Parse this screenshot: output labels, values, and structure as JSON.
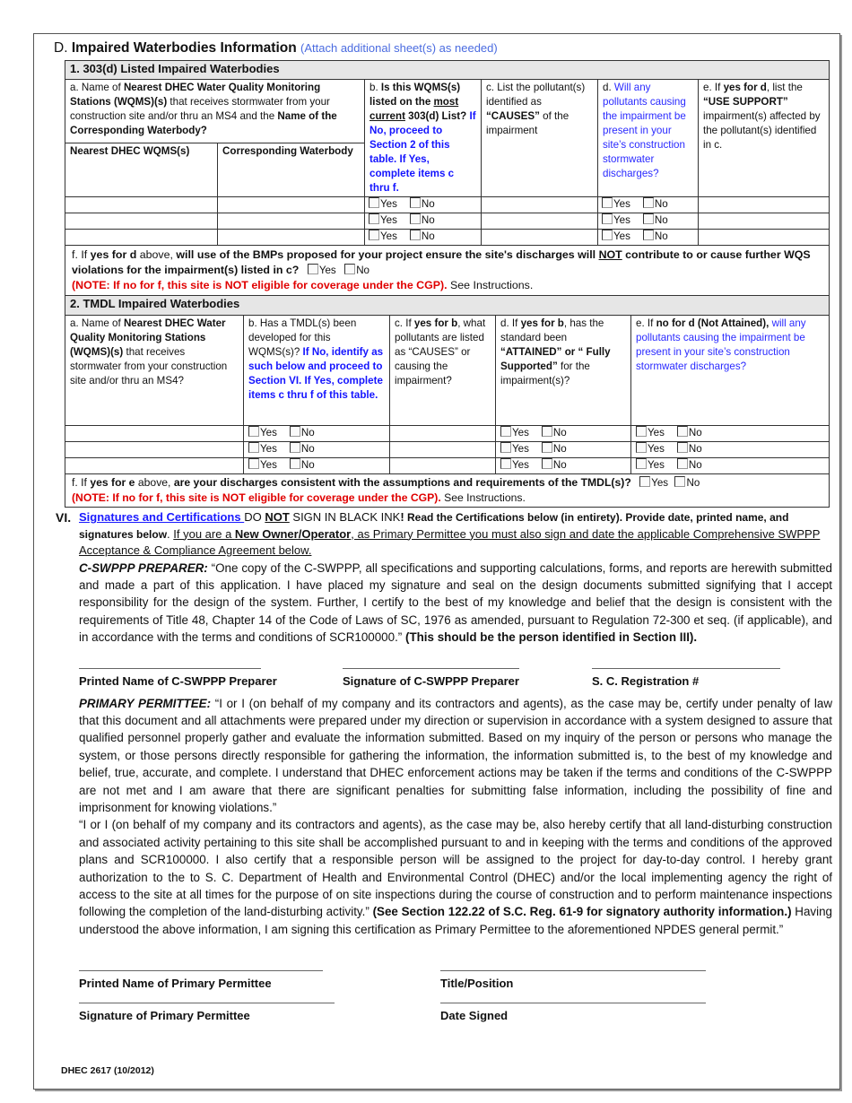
{
  "section_d": {
    "letter": "D.",
    "title": "Impaired Waterbodies Information",
    "note": "(Attach additional sheet(s) as needed)"
  },
  "table1": {
    "heading": "1. 303(d) Listed Impaired Waterbodies",
    "col_a": [
      [
        "a.  Name of ",
        ""
      ],
      [
        "Nearest DHEC Water Quality Monitoring Stations (WQMS)(s)",
        "b"
      ],
      [
        " that receives stormwater from your construction site and/or thru an MS4 and the ",
        ""
      ],
      [
        "Name of the Corresponding Waterbody?",
        "b"
      ]
    ],
    "sub_a1": "Nearest DHEC WQMS(s)",
    "sub_a2": "Corresponding Waterbody",
    "col_b": [
      [
        "b. ",
        ""
      ],
      [
        "Is this WQMS(s) listed on the ",
        "b"
      ],
      [
        "most",
        "bu"
      ],
      [
        " ",
        "b"
      ],
      [
        "current",
        "bu"
      ],
      [
        " 303(d) List? ",
        "b"
      ],
      [
        "If No, proceed to Section 2 of this table. If Yes, complete items c thru f.",
        "blb"
      ]
    ],
    "col_c": [
      [
        "c. List the pollutant(s) identified as ",
        ""
      ],
      [
        "“CAUSES”",
        "b"
      ],
      [
        " of the impairment",
        ""
      ]
    ],
    "col_d": [
      [
        "d.",
        ""
      ],
      [
        " Will any pollutants causing the impairment be present in your site’s construction stormwater discharges?",
        "bl"
      ]
    ],
    "col_e": [
      [
        "e. If ",
        ""
      ],
      [
        "yes for d",
        "b"
      ],
      [
        ", list the ",
        ""
      ],
      [
        "“USE SUPPORT”",
        "b"
      ],
      [
        " impairment(s) affected by the pollutant(s) identified in c.",
        ""
      ]
    ],
    "yes": "Yes",
    "no": "No",
    "question_f": [
      [
        "f. If ",
        ""
      ],
      [
        "yes for d",
        "b"
      ],
      [
        " above, ",
        ""
      ],
      [
        "will use of the BMPs proposed for your project ensure the site's discharges will ",
        "b"
      ],
      [
        "NOT",
        "bu"
      ],
      [
        " contribute to or cause further WQS violations for the impairment(s) listed in c?",
        "b"
      ]
    ],
    "note_f": [
      [
        "(NOTE:  If no for f, this site is NOT eligible for coverage under the CGP).",
        "r"
      ],
      [
        " See Instructions.",
        ""
      ]
    ]
  },
  "table2": {
    "heading": "2. TMDL Impaired Waterbodies",
    "col_a": [
      [
        "a.  Name of ",
        ""
      ],
      [
        "Nearest DHEC Water Quality Monitoring Stations (WQMS)(s)",
        "b"
      ],
      [
        " that receives stormwater from your construction site and/or thru an MS4?",
        ""
      ]
    ],
    "col_b": [
      [
        "b. Has a TMDL(s) been developed for this WQMS(s)? ",
        ""
      ],
      [
        "If No, identify as such below and proceed to Section VI.  If Yes, complete items c thru f of this table.",
        "blb"
      ]
    ],
    "col_c": [
      [
        "c. If ",
        ""
      ],
      [
        "yes for b",
        "b"
      ],
      [
        ", what pollutants are listed as “CAUSES” or causing the impairment?",
        ""
      ]
    ],
    "col_d": [
      [
        "d. If ",
        ""
      ],
      [
        "yes for b",
        "b"
      ],
      [
        ", has the standard been ",
        ""
      ],
      [
        "“ATTAINED” or “ Fully Supported”",
        "b"
      ],
      [
        " for the impairment(s)?",
        ""
      ]
    ],
    "col_e": [
      [
        "e. If ",
        ""
      ],
      [
        "no for d (Not Attained),",
        "b"
      ],
      [
        " will any pollutants causing the impairment be present in your site’s construction stormwater discharges?",
        "bl"
      ]
    ],
    "yes": "Yes",
    "no": "No",
    "question_f": [
      [
        "f. If ",
        ""
      ],
      [
        "yes for e",
        "b"
      ],
      [
        " above, ",
        ""
      ],
      [
        "are your discharges consistent with the assumptions and requirements of the TMDL(s)?",
        "b"
      ]
    ],
    "note_f": [
      [
        "(NOTE:  If no for f, this site is NOT eligible for coverage under the CGP).",
        "r"
      ],
      [
        " See Instructions.",
        ""
      ]
    ]
  },
  "section_vi": {
    "numeral": "VI.",
    "intro": [
      [
        "Signatures and Certifications ",
        "lk"
      ],
      [
        "DO ",
        ""
      ],
      [
        "NOT",
        "bu"
      ],
      [
        " SIGN IN BLACK INK",
        ""
      ],
      [
        "!",
        "b"
      ],
      [
        "   Read the Certifications below (in entirety).  Provide date, printed name, and signatures below",
        "bs"
      ],
      [
        ".  ",
        ""
      ],
      [
        "If you are a ",
        "u"
      ],
      [
        "New Owner/Operator",
        "bu"
      ],
      [
        ", as Primary Permittee you must also sign and date the applicable Comprehensive SWPPP Acceptance & Compliance Agreement below.",
        "u"
      ]
    ],
    "preparer_text": [
      [
        "C-SWPPP PREPARER:",
        "bi"
      ],
      [
        "  “One copy of the C-SWPPP, all specifications and supporting calculations, forms, and reports are herewith submitted and made a part of this application. I have placed my signature and seal on the design documents submitted signifying that I accept responsibility for the design of the system. Further, I certify to the best of my knowledge and belief that the design is consistent with the requirements of Title 48, Chapter 14 of the Code of Laws of SC, 1976 as amended, pursuant to Regulation 72-300 et seq. (if applicable), and in accordance with the terms and conditions of SCR100000.” ",
        ""
      ],
      [
        "(This should be the person identified in Section III).",
        "b"
      ]
    ],
    "preparer_labels": [
      "Printed Name of C-SWPPP Preparer",
      "Signature of C-SWPPP Preparer",
      "S. C. Registration #"
    ],
    "permittee_text_1": [
      [
        "PRIMARY PERMITTEE:",
        "bi"
      ],
      [
        "  “I or I (on behalf of my company and its contractors and agents), as the case may be, certify under penalty of law that this document and all attachments were prepared under my direction or supervision in accordance with a system designed to assure that qualified personnel properly gather and evaluate the information submitted. Based on my inquiry of the person or persons who manage the system, or those persons directly responsible for gathering the information, the information submitted is, to the best of my knowledge and belief, true, accurate, and complete. I understand that DHEC enforcement actions may be taken if the terms and conditions of the C-SWPPP are not met and I am aware that there are significant penalties for submitting false information, including the possibility of fine and imprisonment for knowing violations.”",
        ""
      ]
    ],
    "permittee_text_2": [
      [
        "“I or I (on behalf of my company and its contractors and agents), as the case may be, also hereby certify that all land-disturbing construction and associated activity pertaining to this site shall be accomplished pursuant to and in keeping with the terms and conditions of the approved plans and SCR100000. I also certify that a responsible person will be assigned to the project for day-to-day control. I hereby grant authorization to the to S. C. Department of Health and Environmental Control (DHEC) and/or the local implementing agency the right of access to the site at all times for the purpose of on site inspections during the course of construction and to perform maintenance inspections following the completion of the land-disturbing activity.” ",
        ""
      ],
      [
        "(See Section 122.22 of S.C. Reg. 61-9 for signatory authority information.)",
        "b"
      ],
      [
        "  Having understood the above information, I am signing this certification as Primary Permittee to the aforementioned NPDES general permit.”",
        ""
      ]
    ],
    "permittee_labels": {
      "printed_name": "Printed Name of Primary Permittee",
      "title": "Title/Position",
      "signature": "Signature of Primary Permittee",
      "date": "Date Signed"
    }
  },
  "footer": "DHEC 2617 (10/2012)"
}
